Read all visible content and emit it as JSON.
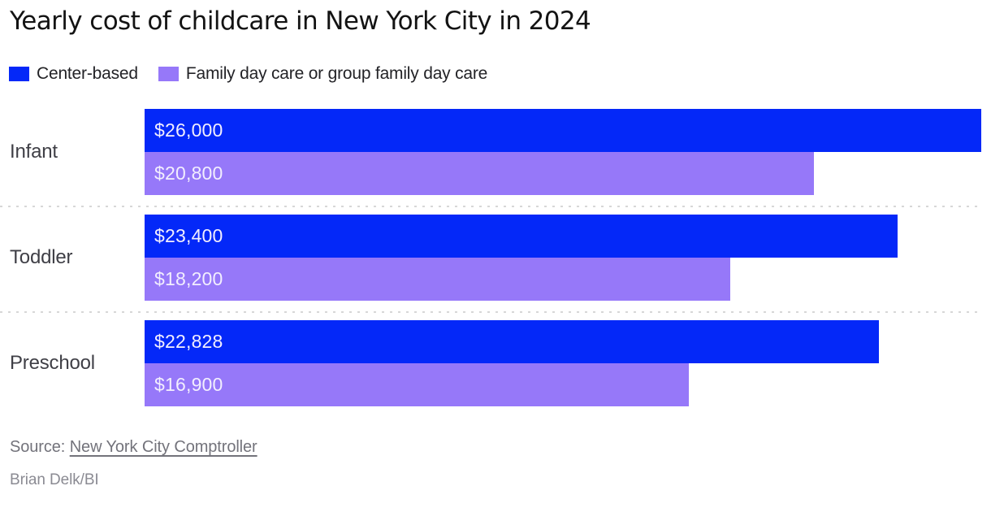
{
  "chart_data": {
    "type": "bar",
    "orientation": "horizontal",
    "title": "Yearly cost of childcare in New York City in 2024",
    "categories": [
      "Infant",
      "Toddler",
      "Preschool"
    ],
    "series": [
      {
        "name": "Center-based",
        "color": "#0428f8",
        "values": [
          26000,
          23400,
          22828
        ],
        "value_labels": [
          "$26,000",
          "$23,400",
          "$22,828"
        ]
      },
      {
        "name": "Family day care or group family day care",
        "color": "#9678f9",
        "values": [
          20800,
          18200,
          16900
        ],
        "value_labels": [
          "$20,800",
          "$18,200",
          "$16,900"
        ]
      }
    ],
    "xlim": [
      0,
      26000
    ],
    "grid": false,
    "axis_ticks": "none",
    "legend_position": "top-left",
    "value_label_position": "inside-left",
    "value_label_color": "#f2eefe",
    "row_separator_style": "dotted"
  },
  "source": {
    "prefix": "Source:",
    "link_text": "New York City Comptroller"
  },
  "byline": "Brian Delk/BI"
}
